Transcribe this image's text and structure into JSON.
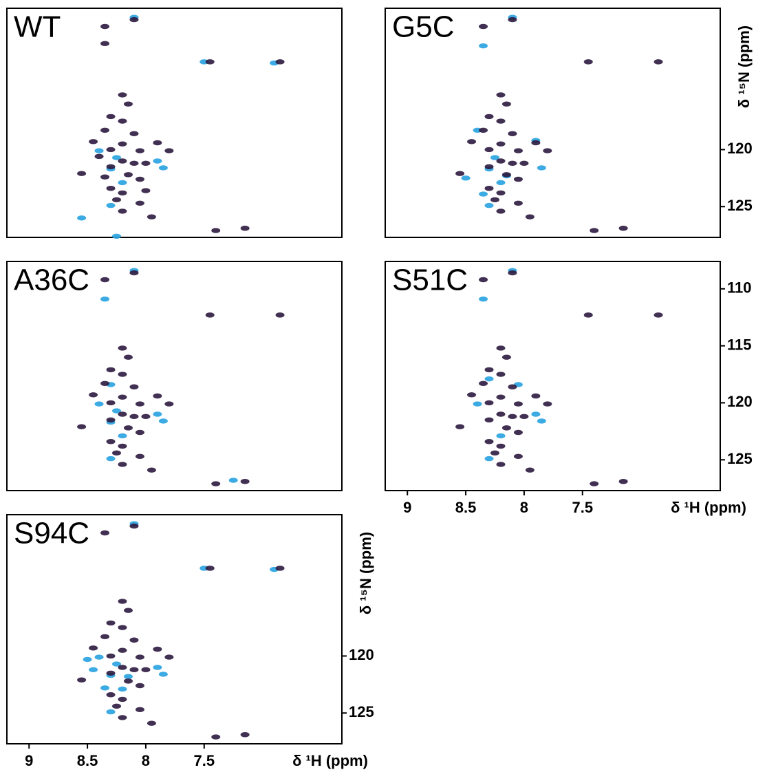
{
  "chart_data": [
    {
      "type": "scatter",
      "title": "WT",
      "xlim": [
        9.19,
        6.32
      ],
      "ylim": [
        107.6,
        127.7
      ],
      "series": [
        {
          "color": "#29a3e0",
          "x": [
            8.1,
            7.5,
            6.9,
            8.4,
            8.25,
            8.3,
            7.9,
            8.2,
            8.3,
            7.85,
            8.25,
            8.55
          ],
          "values": [
            108.4,
            112.3,
            112.4,
            120.1,
            120.7,
            121.7,
            121.0,
            122.9,
            124.9,
            121.6,
            127.6,
            126.0
          ]
        },
        {
          "color": "#2d1a40",
          "x": [
            8.35,
            8.1,
            8.35,
            7.45,
            6.85,
            8.2,
            8.15,
            8.3,
            8.2,
            8.35,
            8.1,
            8.45,
            8.2,
            7.9,
            8.3,
            8.05,
            7.8,
            8.4,
            8.2,
            8.1,
            8.0,
            8.3,
            8.15,
            8.55,
            8.35,
            8.05,
            8.3,
            8.2,
            8.0,
            8.25,
            8.05,
            8.2,
            7.95,
            7.4,
            7.15
          ],
          "values": [
            109.2,
            108.6,
            110.7,
            112.3,
            112.3,
            115.2,
            116.0,
            117.1,
            117.5,
            118.3,
            118.6,
            119.3,
            119.5,
            119.4,
            120.0,
            120.1,
            120.1,
            120.6,
            121.0,
            121.2,
            121.2,
            121.5,
            122.2,
            122.1,
            122.4,
            122.6,
            123.4,
            123.8,
            123.6,
            124.4,
            124.7,
            125.4,
            125.9,
            127.1,
            126.9
          ]
        }
      ]
    },
    {
      "type": "scatter",
      "title": "G5C",
      "xlim": [
        9.19,
        6.32
      ],
      "ylim": [
        107.6,
        127.7
      ],
      "yticks": [
        120,
        125
      ],
      "ylabel": "δ ¹⁵N (ppm)",
      "series": [
        {
          "color": "#29a3e0",
          "x": [
            8.1,
            8.35,
            8.4,
            8.25,
            8.3,
            7.9,
            8.2,
            8.3,
            7.85,
            8.5,
            8.15,
            8.35
          ],
          "values": [
            108.4,
            110.9,
            118.3,
            120.7,
            121.7,
            119.2,
            122.9,
            124.9,
            121.6,
            122.5,
            122.3,
            123.9
          ]
        },
        {
          "color": "#2d1a40",
          "x": [
            8.35,
            8.1,
            7.45,
            6.85,
            8.2,
            8.15,
            8.3,
            8.2,
            8.35,
            8.1,
            8.45,
            8.2,
            7.9,
            8.3,
            8.05,
            7.8,
            8.2,
            8.1,
            8.0,
            8.3,
            8.15,
            8.55,
            8.05,
            8.3,
            8.2,
            8.25,
            8.05,
            8.2,
            7.95,
            7.4,
            7.15
          ],
          "values": [
            109.2,
            108.6,
            112.3,
            112.3,
            115.2,
            116.0,
            117.1,
            117.5,
            118.3,
            118.6,
            119.3,
            119.5,
            119.4,
            120.0,
            120.1,
            120.1,
            121.0,
            121.2,
            121.2,
            121.5,
            122.2,
            122.1,
            122.6,
            123.4,
            123.8,
            124.4,
            124.7,
            125.4,
            125.9,
            127.1,
            126.9
          ]
        }
      ]
    },
    {
      "type": "scatter",
      "title": "A36C",
      "xlim": [
        9.19,
        6.32
      ],
      "ylim": [
        107.6,
        127.7
      ],
      "series": [
        {
          "color": "#29a3e0",
          "x": [
            8.1,
            8.35,
            8.4,
            8.25,
            8.3,
            7.9,
            8.2,
            8.3,
            7.85,
            8.3,
            7.25
          ],
          "values": [
            108.4,
            110.9,
            120.1,
            120.7,
            121.7,
            121.0,
            122.9,
            124.9,
            121.6,
            118.4,
            126.8
          ]
        },
        {
          "color": "#2d1a40",
          "x": [
            8.35,
            8.1,
            7.45,
            6.85,
            8.2,
            8.15,
            8.3,
            8.2,
            8.35,
            8.1,
            8.45,
            8.2,
            7.9,
            8.3,
            8.05,
            7.8,
            8.2,
            8.1,
            8.0,
            8.3,
            8.15,
            8.55,
            8.05,
            8.3,
            8.2,
            8.25,
            8.05,
            8.2,
            7.95,
            7.4,
            7.15
          ],
          "values": [
            109.2,
            108.6,
            112.3,
            112.3,
            115.2,
            116.0,
            117.1,
            117.5,
            118.3,
            118.6,
            119.3,
            119.5,
            119.4,
            120.0,
            120.1,
            120.1,
            121.0,
            121.2,
            121.2,
            121.5,
            122.2,
            122.1,
            122.6,
            123.4,
            123.8,
            124.4,
            124.7,
            125.4,
            125.9,
            127.1,
            126.9
          ]
        }
      ]
    },
    {
      "type": "scatter",
      "title": "S51C",
      "xlim": [
        9.19,
        6.32
      ],
      "ylim": [
        107.6,
        127.7
      ],
      "xticks": [
        9.0,
        8.5,
        8.0,
        7.5
      ],
      "yticks": [
        110,
        115,
        120,
        125
      ],
      "xlabel": "δ ¹H (ppm)",
      "series": [
        {
          "color": "#29a3e0",
          "x": [
            8.1,
            8.35,
            8.3,
            8.4,
            7.9,
            8.2,
            8.3,
            7.85,
            8.05
          ],
          "values": [
            108.4,
            110.9,
            117.9,
            120.1,
            121.0,
            122.9,
            124.9,
            121.6,
            118.4
          ]
        },
        {
          "color": "#2d1a40",
          "x": [
            8.35,
            8.1,
            7.45,
            6.85,
            8.2,
            8.15,
            8.3,
            8.2,
            8.35,
            8.1,
            8.45,
            8.2,
            7.9,
            8.3,
            8.05,
            7.8,
            8.2,
            8.1,
            8.0,
            8.3,
            8.15,
            8.55,
            8.05,
            8.3,
            8.2,
            8.25,
            8.05,
            8.2,
            7.95,
            7.4,
            7.15
          ],
          "values": [
            109.2,
            108.6,
            112.3,
            112.3,
            115.2,
            116.0,
            117.1,
            117.5,
            118.3,
            118.6,
            119.3,
            119.5,
            119.4,
            120.0,
            120.1,
            120.1,
            121.0,
            121.2,
            121.2,
            121.5,
            122.2,
            122.1,
            122.6,
            123.4,
            123.8,
            124.4,
            124.7,
            125.4,
            125.9,
            127.1,
            126.9
          ]
        }
      ]
    },
    {
      "type": "scatter",
      "title": "S94C",
      "xlim": [
        9.19,
        6.32
      ],
      "ylim": [
        107.6,
        127.7
      ],
      "xticks": [
        9.0,
        8.5,
        8.0,
        7.5
      ],
      "yticks": [
        120,
        125
      ],
      "xlabel": "δ ¹H (ppm)",
      "ylabel": "δ ¹⁵N (ppm)",
      "series": [
        {
          "color": "#29a3e0",
          "x": [
            8.1,
            7.5,
            6.9,
            8.4,
            8.25,
            8.3,
            7.9,
            8.2,
            8.3,
            7.85,
            8.45,
            8.35,
            8.15,
            8.5
          ],
          "values": [
            108.4,
            112.3,
            112.4,
            120.1,
            120.7,
            121.7,
            121.0,
            122.9,
            124.9,
            121.6,
            121.2,
            122.8,
            121.8,
            120.3
          ]
        },
        {
          "color": "#2d1a40",
          "x": [
            8.35,
            8.1,
            7.45,
            6.85,
            8.2,
            8.15,
            8.3,
            8.2,
            8.35,
            8.1,
            8.45,
            8.2,
            7.9,
            8.3,
            8.05,
            7.8,
            8.2,
            8.1,
            8.0,
            8.3,
            8.15,
            8.55,
            8.05,
            8.3,
            8.2,
            8.25,
            8.05,
            8.2,
            7.95,
            7.4,
            7.15
          ],
          "values": [
            109.2,
            108.6,
            112.3,
            112.3,
            115.2,
            116.0,
            117.1,
            117.5,
            118.3,
            118.6,
            119.3,
            119.5,
            119.4,
            120.0,
            120.1,
            120.1,
            121.0,
            121.2,
            121.2,
            121.5,
            122.2,
            122.1,
            122.6,
            123.4,
            123.8,
            124.4,
            124.7,
            125.4,
            125.9,
            127.1,
            126.9
          ]
        }
      ]
    }
  ]
}
